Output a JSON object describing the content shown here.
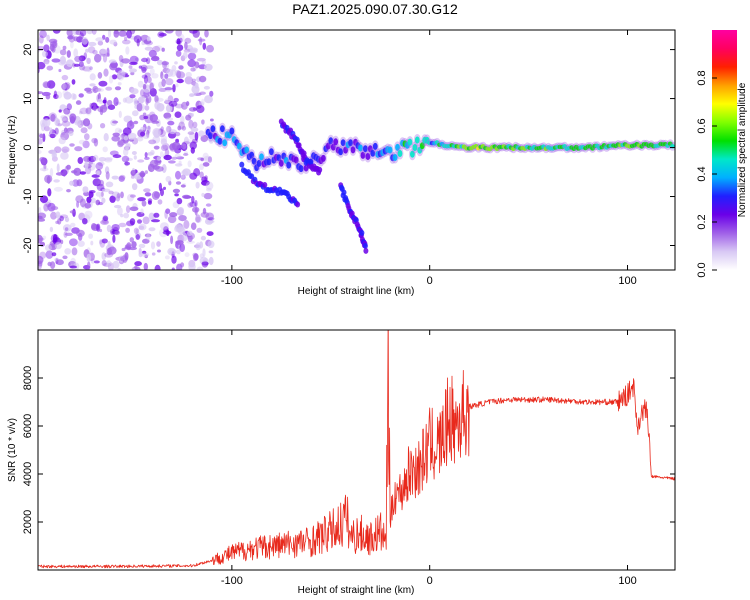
{
  "figure": {
    "title": "PAZ1.2025.090.07.30.G12"
  },
  "chart_data": [
    {
      "type": "heatmap",
      "xlabel": "Height of straight line (km)",
      "ylabel": "Frequency (Hz)",
      "xlim": [
        -198,
        124
      ],
      "ylim": [
        -25,
        24
      ],
      "xticks": [
        "-100",
        "0",
        "100"
      ],
      "yticks": [
        "20",
        "10",
        "0",
        "-10",
        "-20"
      ],
      "colorbar": {
        "label": "Normalized spectral amplitude",
        "ticks": [
          "0.0",
          "0.2",
          "0.4",
          "0.6",
          "0.8"
        ],
        "range": [
          0,
          1
        ],
        "colormap": [
          "#ffffff",
          "#d8c8f4",
          "#a060e8",
          "#6a00e8",
          "#2020ff",
          "#00b0ff",
          "#00e8c8",
          "#00e000",
          "#80ff00",
          "#ffff00",
          "#ffa000",
          "#ff2000",
          "#ff0060",
          "#ff00a0"
        ]
      },
      "ridge": [
        {
          "x": -112,
          "f": 3,
          "a": 0.3
        },
        {
          "x": -100,
          "f": 2,
          "a": 0.35
        },
        {
          "x": -90,
          "f": -3,
          "a": 0.35
        },
        {
          "x": -80,
          "f": -2,
          "a": 0.3
        },
        {
          "x": -70,
          "f": -3,
          "a": 0.3
        },
        {
          "x": -60,
          "f": -3,
          "a": 0.25
        },
        {
          "x": -50,
          "f": 0,
          "a": 0.3
        },
        {
          "x": -40,
          "f": 0,
          "a": 0.3
        },
        {
          "x": -30,
          "f": -1,
          "a": 0.3
        },
        {
          "x": -20,
          "f": -1,
          "a": 0.4
        },
        {
          "x": -10,
          "f": 0,
          "a": 0.5
        },
        {
          "x": 0,
          "f": 1,
          "a": 0.4
        },
        {
          "x": 10,
          "f": 0.5,
          "a": 0.5
        },
        {
          "x": 20,
          "f": 0,
          "a": 0.6
        },
        {
          "x": 40,
          "f": 0,
          "a": 0.55
        },
        {
          "x": 60,
          "f": 0,
          "a": 0.5
        },
        {
          "x": 80,
          "f": 0,
          "a": 0.5
        },
        {
          "x": 100,
          "f": 0.5,
          "a": 0.55
        },
        {
          "x": 124,
          "f": 0.5,
          "a": 0.5
        }
      ],
      "branches": [
        {
          "x": [
            -95,
            -85,
            -75,
            -66
          ],
          "f": [
            -4,
            -8,
            -9,
            -12
          ],
          "a": 0.3
        },
        {
          "x": [
            -75,
            -68,
            -62,
            -55
          ],
          "f": [
            5,
            2,
            -3,
            -5
          ],
          "a": 0.25
        },
        {
          "x": [
            -45,
            -40,
            -35,
            -32
          ],
          "f": [
            -8,
            -13,
            -17,
            -21
          ],
          "a": 0.25
        }
      ]
    },
    {
      "type": "line",
      "xlabel": "Height of straight line (km)",
      "ylabel": "SNR (10 * v/v)",
      "xlim": [
        -198,
        124
      ],
      "ylim": [
        0,
        10000
      ],
      "xticks": [
        "-100",
        "0",
        "100"
      ],
      "yticks": [
        "2000",
        "4000",
        "6000",
        "8000"
      ],
      "color": "#e8291c",
      "series": [
        {
          "x": [
            -198,
            -160,
            -120,
            -110,
            -100,
            -90,
            -80,
            -70,
            -60,
            -50,
            -45,
            -42,
            -40,
            -35,
            -30,
            -25,
            -22,
            -21,
            -20,
            -18,
            -15,
            -10,
            -5,
            0,
            5,
            8,
            10,
            12,
            15,
            20,
            30,
            40,
            60,
            80,
            95,
            100,
            103,
            105,
            108,
            110,
            112,
            124
          ],
          "y": [
            150,
            150,
            180,
            400,
            700,
            900,
            1000,
            1100,
            1200,
            1600,
            1900,
            2200,
            1400,
            1500,
            1300,
            1600,
            1200,
            9900,
            1800,
            3300,
            3200,
            4100,
            4300,
            5200,
            5200,
            5800,
            6600,
            6000,
            6300,
            6800,
            7000,
            7100,
            7100,
            7000,
            7000,
            7300,
            7700,
            6000,
            6700,
            6600,
            3900,
            3800
          ]
        }
      ]
    }
  ]
}
